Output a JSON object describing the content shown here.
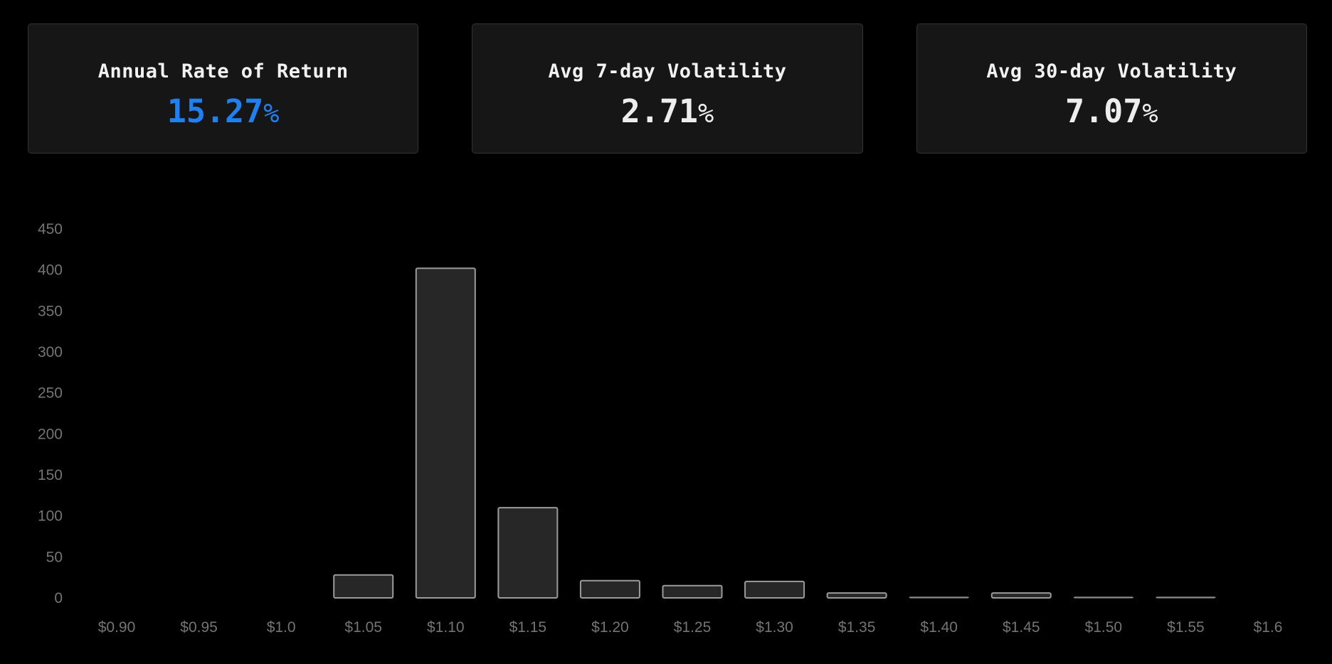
{
  "cards": [
    {
      "title": "Annual Rate of Return",
      "value": "15.27",
      "suffix": "%",
      "value_color": "#1f80f2"
    },
    {
      "title": "Avg 7-day Volatility",
      "value": "2.71",
      "suffix": "%",
      "value_color": "#ededed"
    },
    {
      "title": "Avg 30-day Volatility",
      "value": "7.07",
      "suffix": "%",
      "value_color": "#ededed"
    }
  ],
  "chart_data": {
    "type": "bar",
    "title": "",
    "xlabel": "",
    "ylabel": "",
    "categories": [
      "$0.90",
      "$0.95",
      "$1.0",
      "$1.05",
      "$1.10",
      "$1.15",
      "$1.20",
      "$1.25",
      "$1.30",
      "$1.35",
      "$1.40",
      "$1.45",
      "$1.50",
      "$1.55",
      "$1.6"
    ],
    "values": [
      0,
      0,
      0,
      28,
      402,
      110,
      21,
      15,
      20,
      6,
      1,
      6,
      1,
      1,
      0
    ],
    "yticks": [
      0,
      50,
      100,
      150,
      200,
      250,
      300,
      350,
      400,
      450
    ],
    "ylim": [
      0,
      450
    ],
    "grid": false,
    "legend": "none",
    "background_color": "#000000",
    "bar_fill": "#272727",
    "bar_stroke": "#9b9b9b",
    "axis_label_color": "#747474"
  }
}
